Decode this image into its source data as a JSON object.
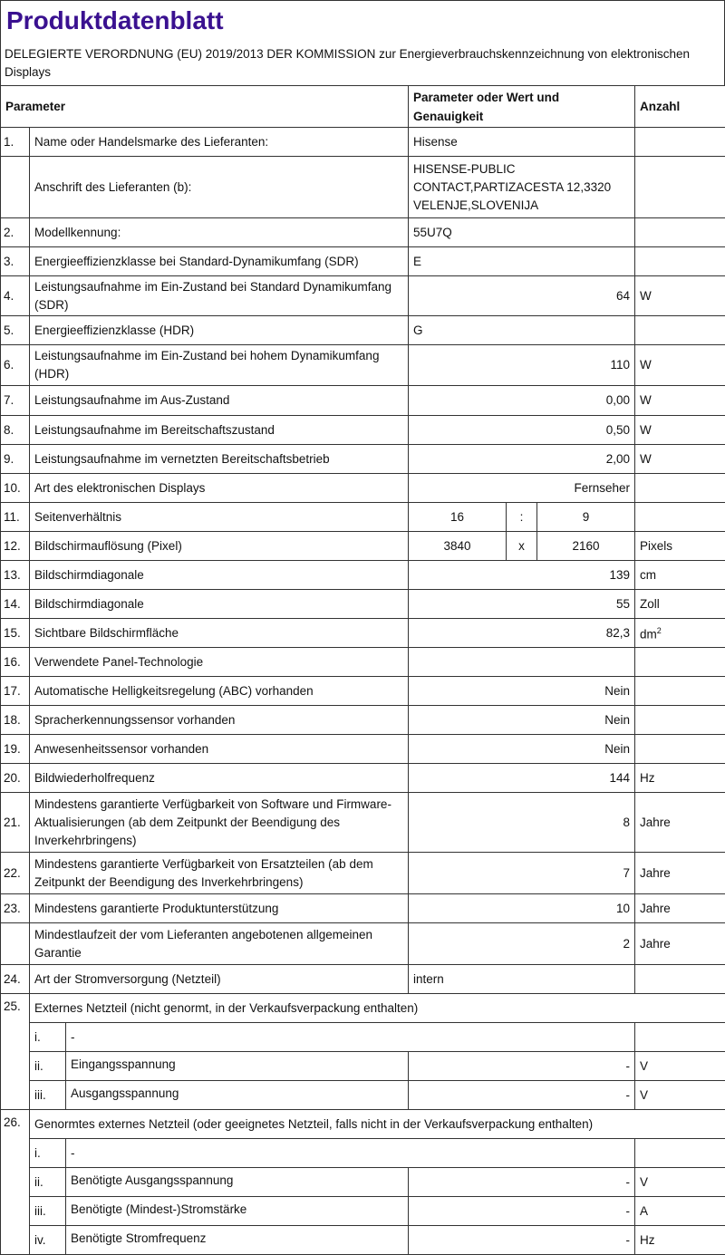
{
  "title": "Produktdatenblatt",
  "subtitle": "DELEGIERTE VERORDNUNG (EU) 2019/2013 DER KOMMISSION zur Energieverbrauchskennzeichnung von elektronischen Displays",
  "colors": {
    "title": "#3a1190",
    "border": "#333333"
  },
  "header": {
    "parameter": "Parameter",
    "value": "Parameter oder Wert und Genauigkeit",
    "unit": "Anzahl"
  },
  "rows": [
    {
      "num": "1.",
      "label": "Name oder Handelsmarke des Lieferanten:",
      "value": "Hisense",
      "unit": "",
      "align": "left",
      "h": 32
    },
    {
      "num": "",
      "label": "Anschrift des Lieferanten (b):",
      "value": "HISENSE-PUBLIC CONTACT,PARTIZACESTA 12,3320 VELENJE,SLOVENIJA",
      "unit": "",
      "align": "left",
      "h": 68
    },
    {
      "num": "2.",
      "label": "Modellkennung:",
      "value": "55U7Q",
      "unit": "",
      "align": "left",
      "h": 32
    },
    {
      "num": "3.",
      "label": "Energieeffizienzklasse bei Standard-Dynamikumfang (SDR)",
      "value": "E",
      "unit": "",
      "align": "left",
      "h": 32
    },
    {
      "num": "4.",
      "label": "Leistungsaufnahme im Ein-Zustand bei Standard Dynamikumfang (SDR)",
      "value": "64",
      "unit": "W",
      "align": "right",
      "h": 44
    },
    {
      "num": "5.",
      "label": "Energieeffizienzklasse (HDR)",
      "value": "G",
      "unit": "",
      "align": "left",
      "h": 32
    },
    {
      "num": "6.",
      "label": " Leistungsaufnahme im Ein-Zustand bei hohem Dynamikumfang (HDR)",
      "value": "110",
      "unit": "W",
      "align": "right",
      "h": 45
    },
    {
      "num": "7.",
      "label": " Leistungsaufnahme im Aus-Zustand",
      "value": "0,00",
      "unit": "W",
      "align": "right",
      "h": 33
    },
    {
      "num": "8.",
      "label": "Leistungsaufnahme im Bereitschaftszustand",
      "value": "0,50",
      "unit": "W",
      "align": "right",
      "h": 32
    },
    {
      "num": "9.",
      "label": " Leistungsaufnahme im vernetzten Bereitschaftsbetrieb",
      "value": "2,00",
      "unit": "W",
      "align": "right",
      "h": 32
    },
    {
      "num": "10.",
      "label": " Art des elektronischen Displays",
      "value": "Fernseher",
      "unit": "",
      "align": "right",
      "h": 32
    },
    {
      "num": "11.",
      "label": "Seitenverhältnis",
      "split": [
        "16",
        ":",
        "9"
      ],
      "unit": "",
      "h": 32
    },
    {
      "num": "12.",
      "label": " Bildschirmauflösung (Pixel)",
      "split": [
        "3840",
        "x",
        "2160"
      ],
      "unit": "Pixels",
      "h": 32
    },
    {
      "num": "13.",
      "label": " Bildschirmdiagonale",
      "value": "139",
      "unit": "cm",
      "align": "right",
      "h": 32
    },
    {
      "num": "14.",
      "label": " Bildschirmdiagonale",
      "value": "55",
      "unit": "Zoll",
      "align": "right",
      "h": 32
    },
    {
      "num": "15.",
      "label": " Sichtbare Bildschirmfläche",
      "value": "82,3",
      "unit": "dm",
      "unit_sup": "2",
      "align": "right",
      "h": 32
    },
    {
      "num": "16.",
      "label": "Verwendete Panel-Technologie",
      "value": "",
      "unit": "",
      "align": "right",
      "h": 32
    },
    {
      "num": "17.",
      "label": "Automatische Helligkeitsregelung (ABC) vorhanden",
      "value": "Nein",
      "unit": "",
      "align": "right",
      "h": 32
    },
    {
      "num": "18.",
      "label": "Spracherkennungssensor vorhanden",
      "value": "Nein",
      "unit": "",
      "align": "right",
      "h": 32
    },
    {
      "num": "19.",
      "label": " Anwesenheitssensor vorhanden",
      "value": "Nein",
      "unit": "",
      "align": "right",
      "h": 32
    },
    {
      "num": "20.",
      "label": "Bildwiederholfrequenz",
      "value": "144",
      "unit": "Hz",
      "align": "right",
      "h": 32
    },
    {
      "num": "21.",
      "label": "Mindestens garantierte Verfügbarkeit von Software und Firmware-Aktualisierungen (ab dem Zeitpunkt der Beendigung des Inverkehrbringens)",
      "value": "8",
      "unit": "Jahre",
      "align": "right",
      "h": 66
    },
    {
      "num": "22.",
      "label": " Mindestens garantierte Verfügbarkeit von Ersatzteilen (ab dem Zeitpunkt der Beendigung des Inverkehrbringens)",
      "value": "7",
      "unit": "Jahre",
      "align": "right",
      "h": 46
    },
    {
      "num": "23.",
      "label": " Mindestens garantierte Produktunterstützung",
      "value": "10",
      "unit": "Jahre",
      "align": "right",
      "h": 32
    },
    {
      "num": "",
      "label": "Mindestlaufzeit der vom Lieferanten angebotenen allgemeinen Garantie",
      "value": "2",
      "unit": "Jahre",
      "align": "right",
      "h": 46
    },
    {
      "num": "24.",
      "label": "Art der Stromversorgung (Netzteil)",
      "value": "intern",
      "unit": "",
      "align": "left",
      "h": 32
    }
  ],
  "groups": [
    {
      "num": "25.",
      "label": "Externes Netzteil (nicht genormt, in der Verkaufsverpackung enthalten)",
      "items": [
        {
          "sub": "i.",
          "label": "-",
          "full": true
        },
        {
          "sub": "ii.",
          "label": "Eingangsspannung",
          "value": "-",
          "unit": "V"
        },
        {
          "sub": "iii.",
          "label": "Ausgangsspannung",
          "value": "-",
          "unit": "V"
        }
      ]
    },
    {
      "num": "26.",
      "label": "Genormtes externes Netzteil (oder geeignetes Netzteil, falls nicht in der Verkaufsverpackung enthalten)",
      "items": [
        {
          "sub": "i.",
          "label": "-",
          "full": true
        },
        {
          "sub": "ii.",
          "label": "Benötigte Ausgangsspannung",
          "value": "-",
          "unit": "V"
        },
        {
          "sub": "iii.",
          "label": "Benötigte (Mindest-)Stromstärke",
          "value": "-",
          "unit": "A"
        },
        {
          "sub": "iv.",
          "label": "Benötigte Stromfrequenz",
          "value": "-",
          "unit": "Hz"
        }
      ]
    }
  ]
}
